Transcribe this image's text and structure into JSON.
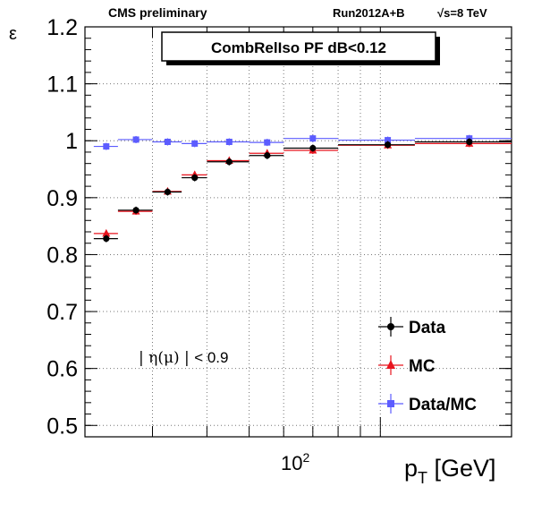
{
  "header": {
    "left": "CMS preliminary",
    "middle": "Run2012A+B",
    "energy_sqrt": "√s",
    "energy_value": "=8 TeV"
  },
  "chart_data": {
    "type": "scatter",
    "title": "CombRelIso PF dB<0.12",
    "xlabel": "p_T [GeV]",
    "ylabel": "ε",
    "x_scale": "log",
    "xlim": [
      21,
      200
    ],
    "ylim": [
      0.48,
      1.2
    ],
    "grid": true,
    "legend_position": "bottom-right",
    "y_ticks": [
      "0.5",
      "0.6",
      "0.7",
      "0.8",
      "0.9",
      "1",
      "1.1",
      "1.2"
    ],
    "x_tick_label": "10",
    "x_tick_exponent": "2",
    "annotation": {
      "eta": "η(μ)",
      "cut": "< 0.9"
    },
    "series": [
      {
        "name": "Data",
        "color": "#000000",
        "marker": "circle",
        "points": [
          {
            "x": 23.5,
            "xlo": 22,
            "xhi": 25,
            "y": 0.828
          },
          {
            "x": 27.5,
            "xlo": 25,
            "xhi": 30,
            "y": 0.878
          },
          {
            "x": 32.5,
            "xlo": 30,
            "xhi": 35,
            "y": 0.91
          },
          {
            "x": 37.5,
            "xlo": 35,
            "xhi": 40,
            "y": 0.935
          },
          {
            "x": 45,
            "xlo": 40,
            "xhi": 50,
            "y": 0.963
          },
          {
            "x": 55,
            "xlo": 50,
            "xhi": 60,
            "y": 0.974
          },
          {
            "x": 70,
            "xlo": 60,
            "xhi": 80,
            "y": 0.987
          },
          {
            "x": 104,
            "xlo": 80,
            "xhi": 120,
            "y": 0.993
          },
          {
            "x": 160,
            "xlo": 120,
            "xhi": 200,
            "y": 0.998
          }
        ]
      },
      {
        "name": "MC",
        "color": "#e8141e",
        "marker": "triangle",
        "points": [
          {
            "x": 23.5,
            "xlo": 22,
            "xhi": 25,
            "y": 0.837
          },
          {
            "x": 27.5,
            "xlo": 25,
            "xhi": 30,
            "y": 0.876
          },
          {
            "x": 32.5,
            "xlo": 30,
            "xhi": 35,
            "y": 0.911
          },
          {
            "x": 37.5,
            "xlo": 35,
            "xhi": 40,
            "y": 0.94
          },
          {
            "x": 45,
            "xlo": 40,
            "xhi": 50,
            "y": 0.965
          },
          {
            "x": 55,
            "xlo": 50,
            "xhi": 60,
            "y": 0.978
          },
          {
            "x": 70,
            "xlo": 60,
            "xhi": 80,
            "y": 0.983
          },
          {
            "x": 104,
            "xlo": 80,
            "xhi": 120,
            "y": 0.992
          },
          {
            "x": 160,
            "xlo": 120,
            "xhi": 200,
            "y": 0.995
          }
        ]
      },
      {
        "name": "Data/MC",
        "color": "#5c5cff",
        "marker": "square",
        "points": [
          {
            "x": 23.5,
            "xlo": 22,
            "xhi": 25,
            "y": 0.99
          },
          {
            "x": 27.5,
            "xlo": 25,
            "xhi": 30,
            "y": 1.002
          },
          {
            "x": 32.5,
            "xlo": 30,
            "xhi": 35,
            "y": 0.998
          },
          {
            "x": 37.5,
            "xlo": 35,
            "xhi": 40,
            "y": 0.995
          },
          {
            "x": 45,
            "xlo": 40,
            "xhi": 50,
            "y": 0.998
          },
          {
            "x": 55,
            "xlo": 50,
            "xhi": 60,
            "y": 0.997
          },
          {
            "x": 70,
            "xlo": 60,
            "xhi": 80,
            "y": 1.004
          },
          {
            "x": 104,
            "xlo": 80,
            "xhi": 120,
            "y": 1.001
          },
          {
            "x": 160,
            "xlo": 120,
            "xhi": 200,
            "y": 1.004
          }
        ]
      }
    ]
  }
}
